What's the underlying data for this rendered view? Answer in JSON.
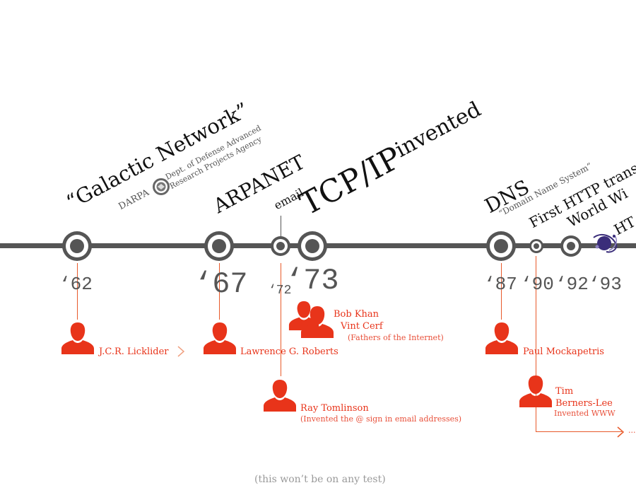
{
  "colors": {
    "axis": "#555555",
    "person": "#e8341a",
    "note": "#e8503a",
    "footer": "#999999"
  },
  "events": {
    "galactic": "“Galactic Network”",
    "darpa": "DARPA",
    "darpa_full_1": "Dept. of Defense Advanced",
    "darpa_full_2": "Research Projects Agency",
    "arpanet": "ARPANET",
    "email": "email",
    "tcpip_a": "TCP/IP",
    "tcpip_b": "invented",
    "dns": "DNS",
    "dns_full": "“Domain Name System”",
    "http": "First HTTP transm",
    "www": "World Wi",
    "ht": "HT"
  },
  "years": {
    "y62": "‘62",
    "y67": "‘67",
    "y72": "‘72",
    "y73": "‘73",
    "y87": "‘87",
    "y90": "‘90",
    "y92": "‘92",
    "y93": "‘93"
  },
  "people": {
    "licklider": "J.C.R. Licklider",
    "roberts": "Lawrence G. Roberts",
    "khan": "Bob Khan",
    "cerf": "Vint Cerf",
    "fathers": "(Fathers of the Internet)",
    "tomlinson": "Ray Tomlinson",
    "tomlinson_note": "(Invented the @ sign in email addresses)",
    "mockapetris": "Paul Mockapetris",
    "tim1": "Tim",
    "tim2": "Berners-Lee",
    "tim_note": "Invented WWW",
    "more": "..."
  },
  "icons": {
    "person": "person-silhouette-icon",
    "arrow": "chevron-right-icon",
    "seal": "darpa-seal-icon",
    "logo": "mosaic-logo-icon"
  },
  "footer": "(this won’t be on any test)"
}
